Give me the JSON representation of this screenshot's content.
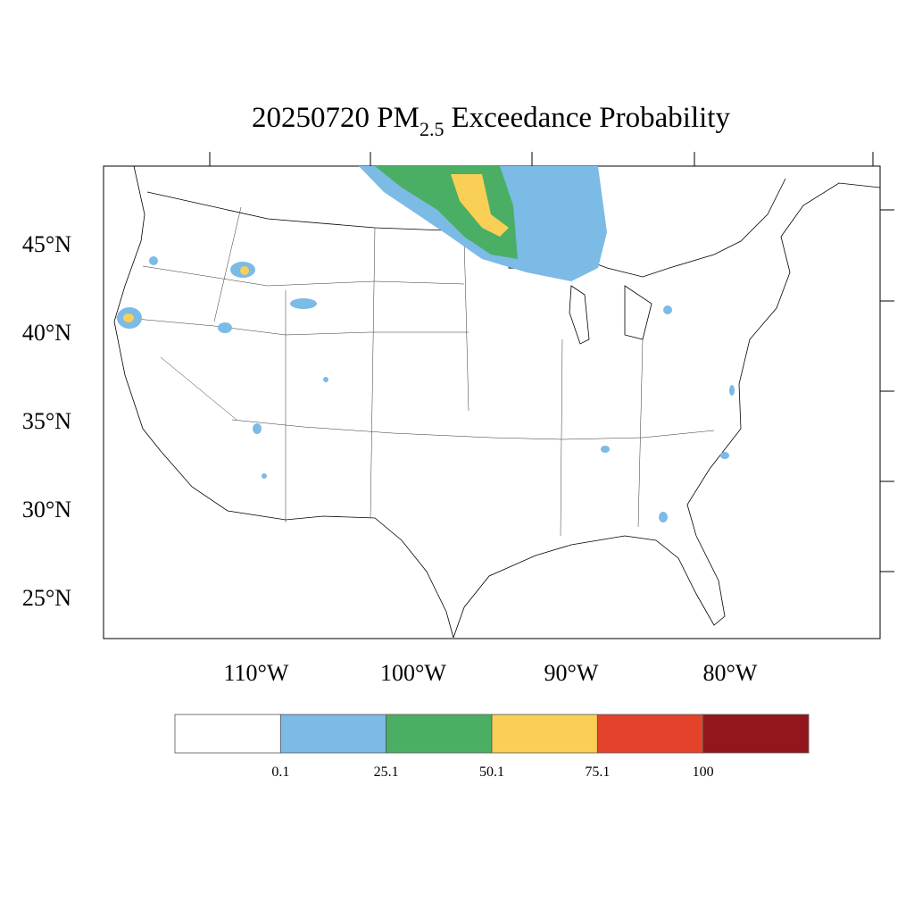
{
  "header": {
    "title_main": "20250720 PM",
    "title_sub": "2.5",
    "title_rest": "Exceedance Probability"
  },
  "map": {
    "lat_labels": [
      "45°N",
      "40°N",
      "35°N",
      "30°N",
      "25°N"
    ],
    "lon_labels": [
      "110°W",
      "100°W",
      "90°W",
      "80°W"
    ]
  },
  "colorbar": {
    "levels": [
      0.1,
      25.1,
      50.1,
      75.1,
      100
    ],
    "colors": [
      "#ffffff",
      "#7bbbe6",
      "#4aaf64",
      "#f9cf55",
      "#e3432a",
      "#92161c"
    ]
  }
}
